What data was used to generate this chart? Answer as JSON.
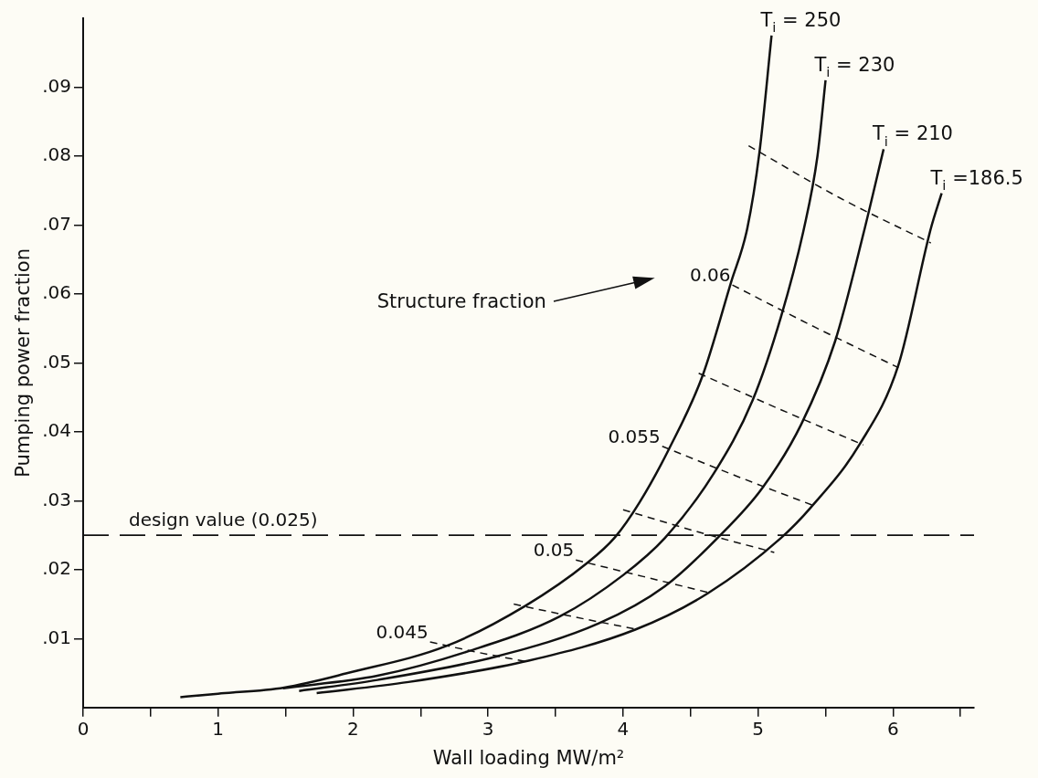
{
  "chart_data": {
    "type": "line",
    "xlabel": "Wall loading MW/m²",
    "ylabel": "Pumping power fraction",
    "xlim": [
      0,
      6.6
    ],
    "ylim": [
      0,
      0.1
    ],
    "xticks": [
      0,
      {
        "value": 0.5,
        "label": null
      },
      1,
      {
        "value": 1.5,
        "label": null
      },
      2,
      {
        "value": 2.5,
        "label": null
      },
      3,
      {
        "value": 3.5,
        "label": null
      },
      4,
      {
        "value": 4.5,
        "label": null
      },
      5,
      {
        "value": 5.5,
        "label": null
      },
      6,
      {
        "value": 6.5,
        "label": null
      }
    ],
    "yticks": [
      {
        "value": 0.01,
        "label": ".01"
      },
      {
        "value": 0.02,
        "label": ".02"
      },
      {
        "value": 0.03,
        "label": ".03"
      },
      {
        "value": 0.04,
        "label": ".04"
      },
      {
        "value": 0.05,
        "label": ".05"
      },
      {
        "value": 0.06,
        "label": ".06"
      },
      {
        "value": 0.07,
        "label": ".07"
      },
      {
        "value": 0.08,
        "label": ".08"
      },
      {
        "value": 0.09,
        "label": ".09"
      }
    ],
    "marker": "none",
    "series": [
      {
        "name": "T$_{i}$ = 250",
        "color": "#111111",
        "line_style": "solid",
        "x": [
          0.72,
          1.0,
          1.49,
          1.96,
          2.7,
          3.28,
          3.73,
          3.94,
          4.12,
          4.34,
          4.59,
          4.8,
          4.92,
          5.01,
          5.1
        ],
        "values": [
          0.0015,
          0.002,
          0.0029,
          0.005,
          0.009,
          0.0148,
          0.0209,
          0.0247,
          0.0297,
          0.0375,
          0.0482,
          0.0617,
          0.0695,
          0.0805,
          0.0975
        ]
      },
      {
        "name": "T$_{i}$ = 230",
        "color": "#111111",
        "line_style": "solid",
        "x": [
          1.48,
          2.18,
          2.86,
          3.53,
          4.0,
          4.31,
          4.67,
          4.96,
          5.17,
          5.34,
          5.44,
          5.5
        ],
        "values": [
          0.0028,
          0.0046,
          0.0082,
          0.0132,
          0.0192,
          0.0246,
          0.0339,
          0.0446,
          0.0567,
          0.0695,
          0.08,
          0.091
        ]
      },
      {
        "name": "T$_{i}$ = 210",
        "color": "#111111",
        "line_style": "solid",
        "x": [
          1.6,
          2.18,
          3.06,
          3.82,
          4.31,
          4.7,
          5.03,
          5.32,
          5.57,
          5.79,
          5.93
        ],
        "values": [
          0.0024,
          0.004,
          0.0074,
          0.0122,
          0.0176,
          0.0246,
          0.0318,
          0.0411,
          0.0531,
          0.0695,
          0.081
        ]
      },
      {
        "name": "T$_{i}$ =186.5",
        "color": "#111111",
        "line_style": "solid",
        "x": [
          1.73,
          2.41,
          3.3,
          4.09,
          4.63,
          5.17,
          5.39,
          5.75,
          6.04,
          6.28,
          6.36
        ],
        "values": [
          0.0021,
          0.0037,
          0.0068,
          0.0113,
          0.0166,
          0.0246,
          0.029,
          0.0381,
          0.0497,
          0.0695,
          0.0746
        ]
      },
      {
        "color": "#111111",
        "line_style": "dashed",
        "x": [
          2.57,
          2.9,
          3.3
        ],
        "values": [
          0.0095,
          0.0081,
          0.0066
        ]
      },
      {
        "color": "#111111",
        "line_style": "dashed",
        "x": [
          3.19,
          3.65,
          4.11
        ],
        "values": [
          0.015,
          0.0131,
          0.0113
        ]
      },
      {
        "color": "#111111",
        "line_style": "dashed",
        "x": [
          3.65,
          4.15,
          4.65
        ],
        "values": [
          0.0214,
          0.019,
          0.0166
        ]
      },
      {
        "color": "#111111",
        "line_style": "dashed",
        "x": [
          4.0,
          4.55,
          5.12
        ],
        "values": [
          0.0287,
          0.0255,
          0.0225
        ]
      },
      {
        "color": "#111111",
        "line_style": "dashed",
        "x": [
          4.29,
          4.85,
          5.41
        ],
        "values": [
          0.0379,
          0.0335,
          0.0293
        ]
      },
      {
        "color": "#111111",
        "line_style": "dashed",
        "x": [
          4.56,
          5.17,
          5.78
        ],
        "values": [
          0.0485,
          0.0432,
          0.0381
        ]
      },
      {
        "color": "#111111",
        "line_style": "dashed",
        "x": [
          4.81,
          5.42,
          6.04
        ],
        "values": [
          0.0613,
          0.0552,
          0.0493
        ]
      },
      {
        "color": "#111111",
        "line_style": "dashed",
        "x": [
          4.93,
          5.6,
          6.28
        ],
        "values": [
          0.0815,
          0.074,
          0.0674
        ]
      }
    ],
    "ref_lines": [
      {
        "axis": "y",
        "value": 0.025,
        "label": "design value (0.025)",
        "color": "#111111",
        "line_style": "dashed"
      }
    ],
    "annotations": [
      {
        "text": "0.045",
        "x": 2.57,
        "y": 0.0095
      },
      {
        "text": "0.05",
        "x": 3.65,
        "y": 0.0214
      },
      {
        "text": "0.055",
        "x": 4.29,
        "y": 0.0379
      },
      {
        "text": "0.06",
        "x": 4.81,
        "y": 0.0613
      },
      "Structure fraction"
    ]
  }
}
